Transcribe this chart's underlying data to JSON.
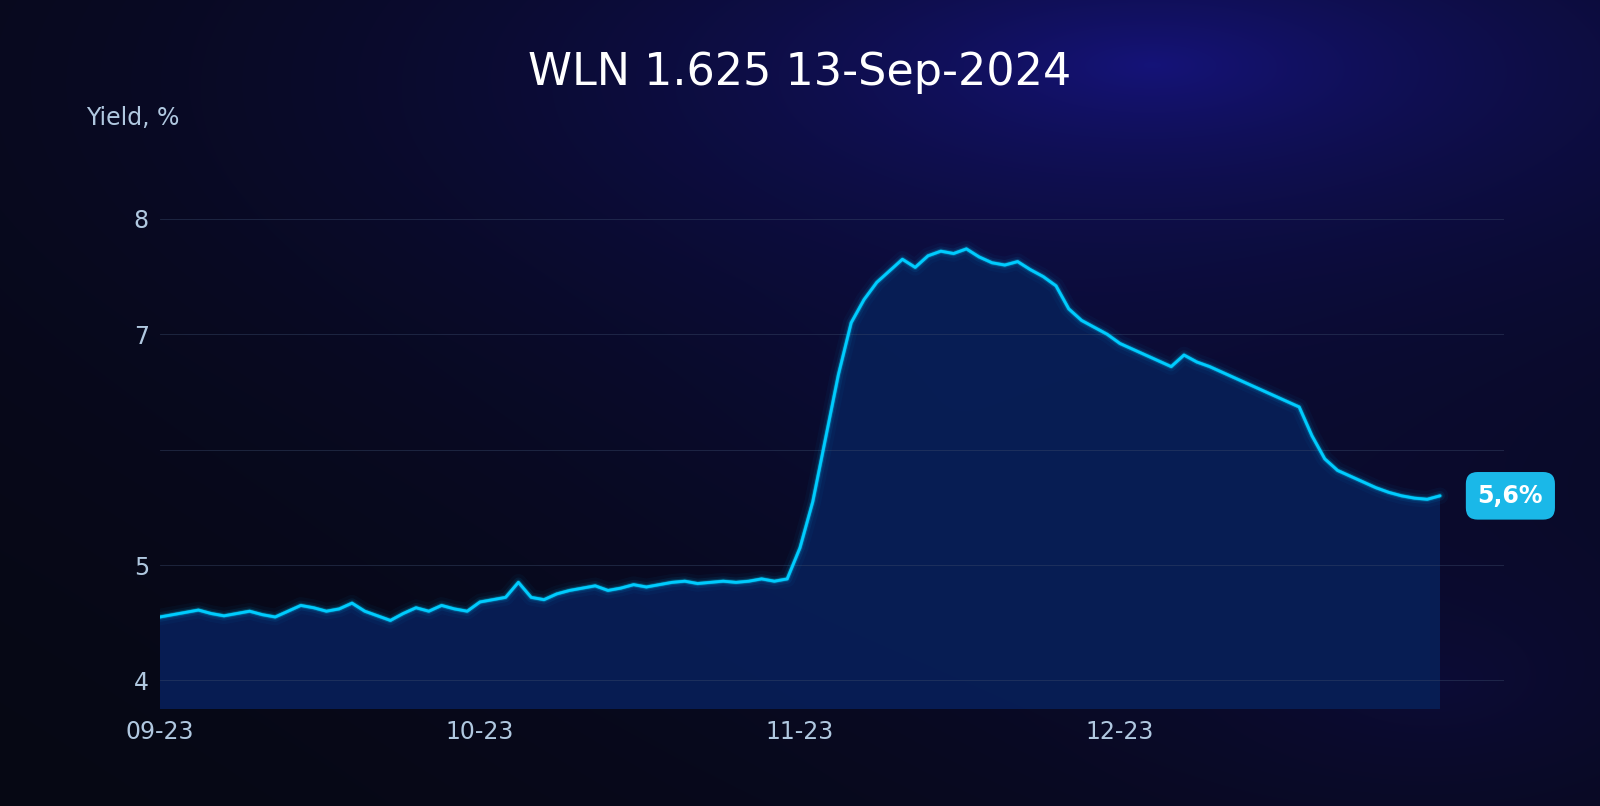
{
  "title": "WLN 1.625 13-Sep-2024",
  "ylabel": "Yield, %",
  "yticks": [
    4,
    5,
    7,
    8
  ],
  "ylim": [
    3.75,
    8.5
  ],
  "xlim": [
    0,
    105
  ],
  "xtick_positions": [
    0,
    25,
    50,
    75
  ],
  "xtick_labels": [
    "09-23",
    "10-23",
    "11-23",
    "12-23"
  ],
  "last_value_label": "5,6%",
  "line_color": "#00ccff",
  "bg_color_outer": "#060810",
  "title_color": "#ffffff",
  "label_color": "#b0c8e0",
  "grid_color": "#3a4a6a",
  "annotation_bg": "#1ab8e8",
  "annotation_text_color": "#ffffff",
  "x_data": [
    0,
    1,
    2,
    3,
    4,
    5,
    6,
    7,
    8,
    9,
    10,
    11,
    12,
    13,
    14,
    15,
    16,
    17,
    18,
    19,
    20,
    21,
    22,
    23,
    24,
    25,
    26,
    27,
    28,
    29,
    30,
    31,
    32,
    33,
    34,
    35,
    36,
    37,
    38,
    39,
    40,
    41,
    42,
    43,
    44,
    45,
    46,
    47,
    48,
    49,
    50,
    51,
    52,
    53,
    54,
    55,
    56,
    57,
    58,
    59,
    60,
    61,
    62,
    63,
    64,
    65,
    66,
    67,
    68,
    69,
    70,
    71,
    72,
    73,
    74,
    75,
    76,
    77,
    78,
    79,
    80,
    81,
    82,
    83,
    84,
    85,
    86,
    87,
    88,
    89,
    90,
    91,
    92,
    93,
    94,
    95,
    96,
    97,
    98,
    99,
    100
  ],
  "y_data": [
    4.55,
    4.57,
    4.59,
    4.61,
    4.58,
    4.56,
    4.58,
    4.6,
    4.57,
    4.55,
    4.6,
    4.65,
    4.63,
    4.6,
    4.62,
    4.67,
    4.6,
    4.56,
    4.52,
    4.58,
    4.63,
    4.6,
    4.65,
    4.62,
    4.6,
    4.68,
    4.7,
    4.72,
    4.85,
    4.72,
    4.7,
    4.75,
    4.78,
    4.8,
    4.82,
    4.78,
    4.8,
    4.83,
    4.81,
    4.83,
    4.85,
    4.86,
    4.84,
    4.85,
    4.86,
    4.85,
    4.86,
    4.88,
    4.86,
    4.88,
    5.15,
    5.55,
    6.1,
    6.65,
    7.1,
    7.3,
    7.45,
    7.55,
    7.65,
    7.58,
    7.68,
    7.72,
    7.7,
    7.74,
    7.67,
    7.62,
    7.6,
    7.63,
    7.56,
    7.5,
    7.42,
    7.22,
    7.12,
    7.06,
    7.0,
    6.92,
    6.87,
    6.82,
    6.77,
    6.72,
    6.82,
    6.76,
    6.72,
    6.67,
    6.62,
    6.57,
    6.52,
    6.47,
    6.42,
    6.37,
    6.12,
    5.92,
    5.82,
    5.77,
    5.72,
    5.67,
    5.63,
    5.6,
    5.58,
    5.57,
    5.6
  ]
}
